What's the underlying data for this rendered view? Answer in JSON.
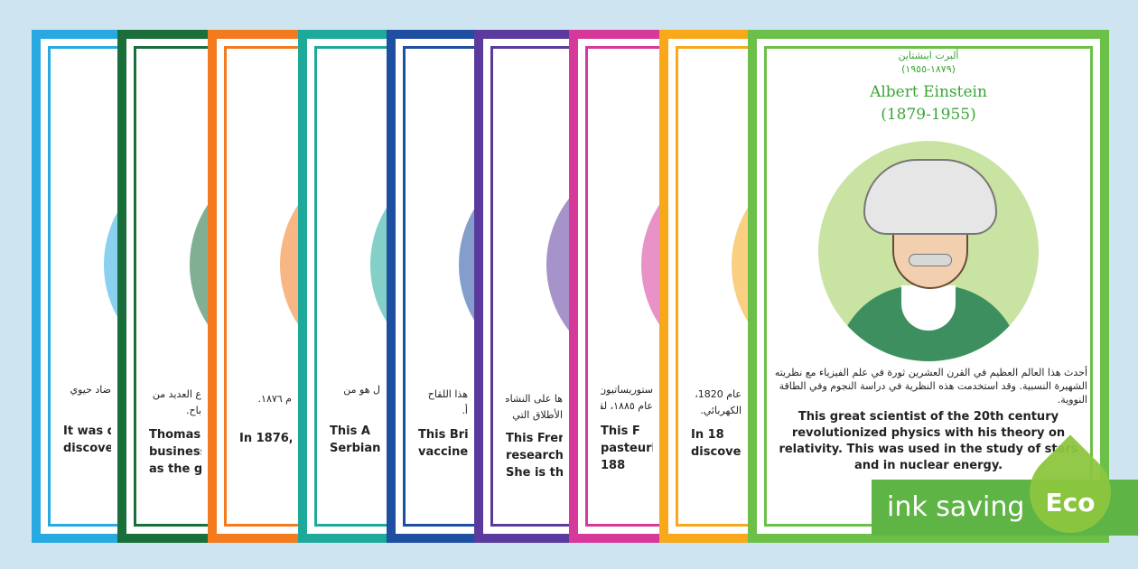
{
  "cards": [
    {
      "lines_ar": [
        "ضاد حيوي"
      ],
      "lines_en": [
        "It was du",
        "discove"
      ]
    },
    {
      "lines_ar": [
        "ع العديد من",
        "باح."
      ],
      "lines_en": [
        "Thomas",
        "business",
        "as the g"
      ]
    },
    {
      "lines_ar": [
        "م ١٨٧٦."
      ],
      "lines_en": [
        "In 1876,"
      ]
    },
    {
      "lines_ar": [
        "ل هو من"
      ],
      "lines_en": [
        "This A",
        "Serbian"
      ]
    },
    {
      "lines_ar": [
        "هذا اللقاح",
        "أ."
      ],
      "lines_en": [
        "This Bri",
        "vaccine. T"
      ]
    },
    {
      "lines_ar": [
        "ها على النشاط",
        "الأطلاق التي"
      ],
      "lines_en": [
        "This French",
        "researches o",
        "She is the"
      ]
    },
    {
      "lines_ar": [
        "ستوريساتيون،",
        "عام ١٨٨٥، لقاح"
      ],
      "lines_en": [
        "This F",
        "pasteurise",
        "188"
      ]
    },
    {
      "lines_ar": [
        "عام 1820،",
        "الكهربائي."
      ],
      "lines_en": [
        "In 18",
        "discovered"
      ]
    }
  ],
  "featured": {
    "name_ar": "ألبرت اينشتاين",
    "years_ar": "(١٨٧٩-١٩٥٥)",
    "name_en": "Albert Einstein",
    "years_en": "(1879-1955)",
    "text_ar": "أحدث هذا العالم العظيم في القرن العشرين ثورة في علم الفيزياء مع نظريته الشهيرة النسبية. وقد استخدمت هذه النظرية في دراسة النجوم وفي الطاقة النووية.",
    "text_en": "This great scientist of the 20th century revolutionized physics with his theory on relativity. This was used in the study of stars and in nuclear energy."
  },
  "badge": {
    "label": "ink saving",
    "eco": "Eco"
  }
}
